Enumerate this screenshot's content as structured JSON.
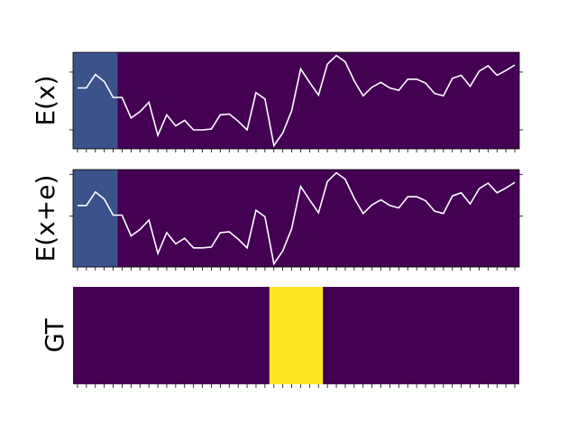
{
  "colors": {
    "background": "#440154",
    "highlight": "#3b528b",
    "anomaly": "#fde725",
    "line": "#ffffff",
    "axis": "#000000"
  },
  "chart_data": [
    {
      "type": "line",
      "ylabel": "E(x)",
      "x": [
        0,
        1,
        2,
        3,
        4,
        5,
        6,
        7,
        8,
        9,
        10,
        11,
        12,
        13,
        14,
        15,
        16,
        17,
        18,
        19,
        20,
        21,
        22,
        23,
        24,
        25,
        26,
        27,
        28,
        29,
        30,
        31,
        32,
        33,
        34,
        35,
        36,
        37,
        38,
        39,
        40,
        41,
        42,
        43,
        44,
        45,
        46,
        47,
        48,
        49
      ],
      "values": [
        0.65,
        0.65,
        0.82,
        0.73,
        0.53,
        0.53,
        0.27,
        0.35,
        0.47,
        0.05,
        0.31,
        0.17,
        0.24,
        0.12,
        0.12,
        0.13,
        0.31,
        0.32,
        0.23,
        0.12,
        0.59,
        0.51,
        -0.08,
        0.08,
        0.36,
        0.89,
        0.72,
        0.56,
        0.95,
        1.06,
        0.98,
        0.74,
        0.55,
        0.66,
        0.72,
        0.65,
        0.62,
        0.76,
        0.76,
        0.71,
        0.58,
        0.55,
        0.77,
        0.81,
        0.67,
        0.86,
        0.93,
        0.81,
        0.87,
        0.94
      ],
      "ylim": [
        -0.12,
        1.1
      ],
      "xlim": [
        0,
        50
      ],
      "highlight_range": [
        0,
        5
      ],
      "ytick_values": [
        0.12,
        0.85
      ]
    },
    {
      "type": "line",
      "ylabel": "E(x+e)",
      "x": [
        0,
        1,
        2,
        3,
        4,
        5,
        6,
        7,
        8,
        9,
        10,
        11,
        12,
        13,
        14,
        15,
        16,
        17,
        18,
        19,
        20,
        21,
        22,
        23,
        24,
        25,
        26,
        27,
        28,
        29,
        30,
        31,
        32,
        33,
        34,
        35,
        36,
        37,
        38,
        39,
        40,
        41,
        42,
        43,
        44,
        45,
        46,
        47,
        48,
        49
      ],
      "values": [
        0.65,
        0.65,
        0.82,
        0.73,
        0.53,
        0.53,
        0.27,
        0.35,
        0.47,
        0.05,
        0.31,
        0.17,
        0.24,
        0.12,
        0.12,
        0.13,
        0.31,
        0.32,
        0.23,
        0.12,
        0.59,
        0.51,
        -0.08,
        0.08,
        0.36,
        0.89,
        0.72,
        0.56,
        0.95,
        1.06,
        0.98,
        0.74,
        0.55,
        0.66,
        0.72,
        0.65,
        0.62,
        0.76,
        0.76,
        0.71,
        0.58,
        0.55,
        0.77,
        0.81,
        0.67,
        0.86,
        0.93,
        0.81,
        0.87,
        0.94
      ],
      "ylim": [
        -0.12,
        1.1
      ],
      "xlim": [
        0,
        50
      ],
      "highlight_range": [
        0,
        5
      ],
      "ytick_values": [
        0.52,
        1.04
      ]
    },
    {
      "type": "heatmap",
      "ylabel": "GT",
      "xlim": [
        0,
        50
      ],
      "anomaly_range": [
        22,
        28
      ]
    }
  ],
  "x_tick_values": [
    0,
    1,
    2,
    3,
    4,
    5,
    6,
    7,
    8,
    9,
    10,
    11,
    12,
    13,
    14,
    15,
    16,
    17,
    18,
    19,
    20,
    21,
    22,
    23,
    24,
    25,
    26,
    27,
    28,
    29,
    30,
    31,
    32,
    33,
    34,
    35,
    36,
    37,
    38,
    39,
    40,
    41,
    42,
    43,
    44,
    45,
    46,
    47,
    48,
    49
  ]
}
